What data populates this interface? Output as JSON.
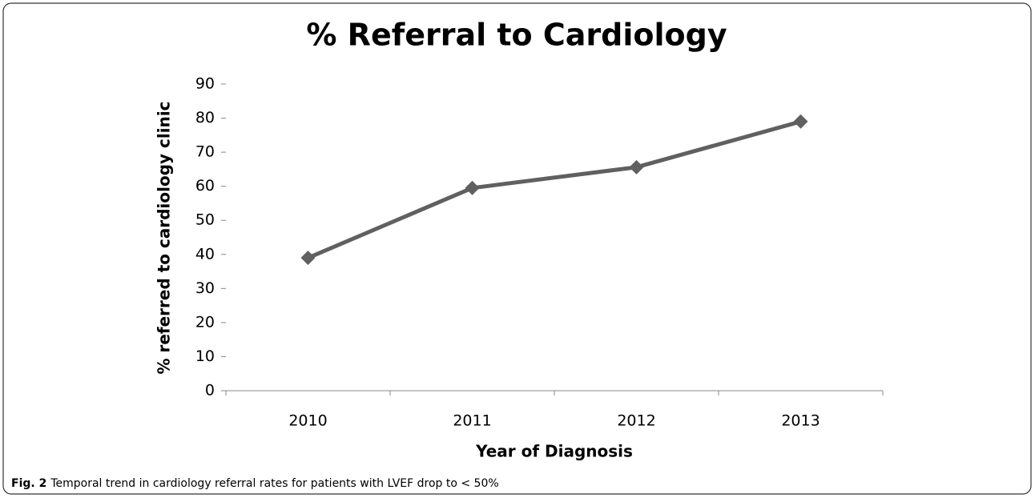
{
  "chart_data": {
    "type": "line",
    "title": "% Referral to Cardiology",
    "categories": [
      "2010",
      "2011",
      "2012",
      "2013"
    ],
    "series": [
      {
        "name": "% referred to cardiology clinic",
        "color": "#606060",
        "values": [
          39,
          59.5,
          65.6,
          79
        ]
      }
    ],
    "ylim": [
      0,
      90
    ],
    "yticks": [
      0,
      10,
      20,
      30,
      40,
      50,
      60,
      70,
      80,
      90
    ],
    "y_label": "% referred to cardiology clinic",
    "x_label": "Year of Diagnosis",
    "grid": false
  },
  "caption": {
    "label": "Fig. 2",
    "text": "Temporal trend in cardiology referral rates for patients with LVEF drop to < 50%"
  }
}
